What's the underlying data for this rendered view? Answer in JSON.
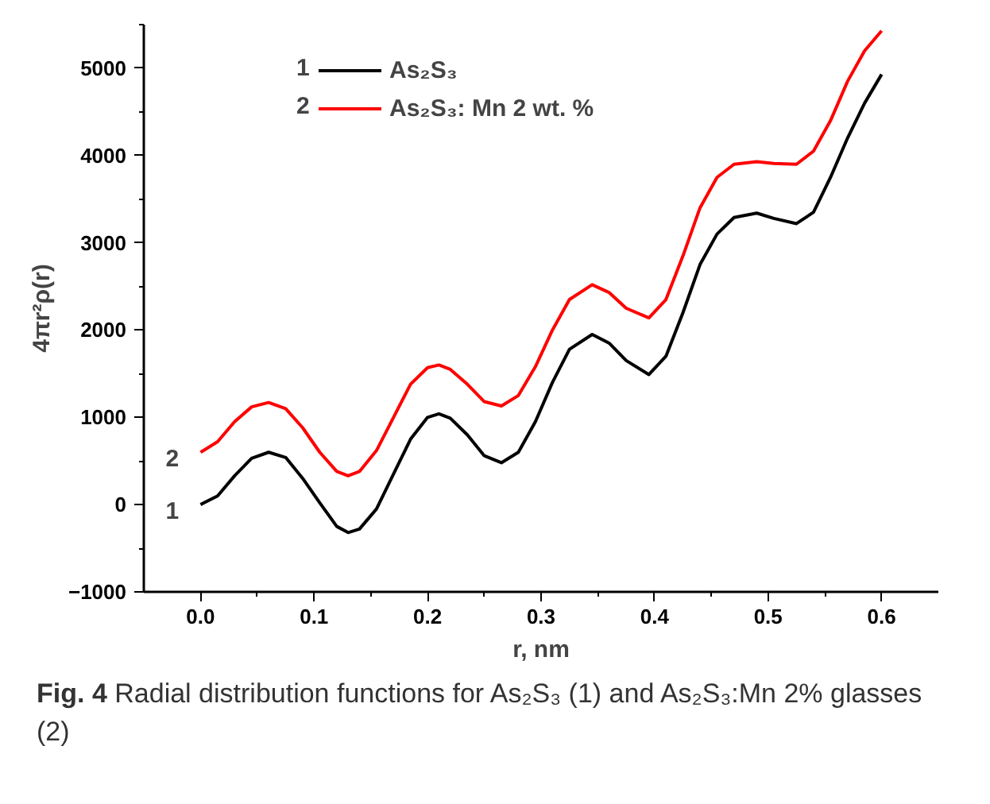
{
  "chart_data": {
    "type": "line",
    "xlabel": "r, nm",
    "ylabel": "4πr²ρ(r)",
    "xlim": [
      -0.05,
      0.65
    ],
    "ylim": [
      -1000,
      5500
    ],
    "xticks": [
      {
        "value": 0.0,
        "label": "0.0"
      },
      {
        "value": 0.1,
        "label": "0.1"
      },
      {
        "value": 0.2,
        "label": "0.2"
      },
      {
        "value": 0.3,
        "label": "0.3"
      },
      {
        "value": 0.4,
        "label": "0.4"
      },
      {
        "value": 0.5,
        "label": "0.5"
      },
      {
        "value": 0.6,
        "label": "0.6"
      }
    ],
    "yticks": [
      -1000,
      0,
      1000,
      2000,
      3000,
      4000,
      5000
    ],
    "grid": false,
    "legend": "top left",
    "x": [
      0,
      0.015,
      0.03,
      0.045,
      0.06,
      0.075,
      0.09,
      0.105,
      0.12,
      0.13,
      0.14,
      0.155,
      0.17,
      0.185,
      0.2,
      0.21,
      0.22,
      0.235,
      0.25,
      0.265,
      0.28,
      0.295,
      0.31,
      0.325,
      0.345,
      0.36,
      0.375,
      0.395,
      0.41,
      0.425,
      0.44,
      0.455,
      0.47,
      0.49,
      0.505,
      0.525,
      0.54,
      0.555,
      0.57,
      0.585,
      0.6
    ],
    "series": [
      {
        "name": "As₂S₃",
        "color": "#000000",
        "values": [
          0,
          100,
          330,
          530,
          600,
          540,
          300,
          20,
          -250,
          -320,
          -280,
          -50,
          350,
          750,
          1000,
          1040,
          990,
          800,
          560,
          480,
          600,
          950,
          1400,
          1780,
          1950,
          1850,
          1650,
          1490,
          1700,
          2200,
          2750,
          3100,
          3290,
          3340,
          3280,
          3220,
          3350,
          3750,
          4200,
          4600,
          4930
        ]
      },
      {
        "name": "As₂S₃: Mn 2 wt. %",
        "color": "#ff0000",
        "values": [
          600,
          720,
          950,
          1120,
          1170,
          1100,
          880,
          600,
          380,
          330,
          380,
          620,
          1000,
          1380,
          1570,
          1600,
          1550,
          1380,
          1180,
          1130,
          1250,
          1580,
          2000,
          2350,
          2520,
          2430,
          2250,
          2140,
          2350,
          2850,
          3400,
          3750,
          3900,
          3930,
          3910,
          3900,
          4050,
          4400,
          4850,
          5200,
          5430
        ]
      }
    ],
    "annotations": [
      {
        "text": "1",
        "x": 0.0,
        "y": 0
      },
      {
        "text": "2",
        "x": 0.0,
        "y": 600
      },
      "Fig. 4 Radial distribution functions for As₂S₃ (1) and As₂S₃:Mn 2% glasses (2)"
    ]
  }
}
